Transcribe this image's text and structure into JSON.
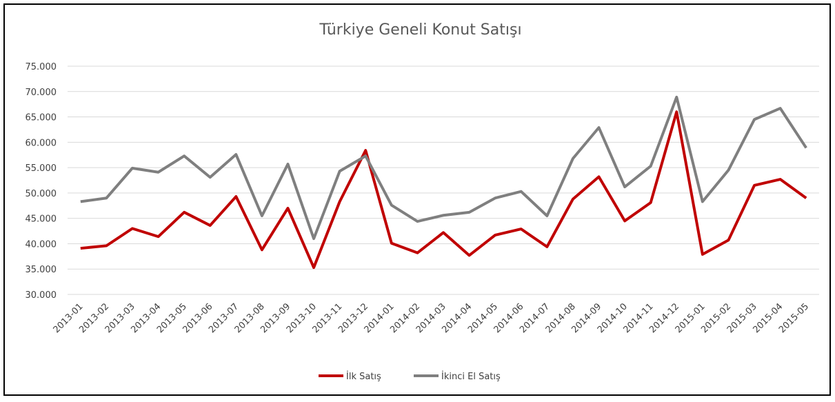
{
  "chart_data": {
    "type": "line",
    "title": "Türkiye Geneli Konut Satışı",
    "categories": [
      "2013-01",
      "2013-02",
      "2013-03",
      "2013-04",
      "2013-05",
      "2013-06",
      "2013-07",
      "2013-08",
      "2013-09",
      "2013-10",
      "2013-11",
      "2013-12",
      "2014-01",
      "2014-02",
      "2014-03",
      "2014-04",
      "2014-05",
      "2014-06",
      "2014-07",
      "2014-08",
      "2014-09",
      "2014-10",
      "2014-11",
      "2014-12",
      "2015-01",
      "2015-02",
      "2015-03",
      "2015-04",
      "2015-05"
    ],
    "series": [
      {
        "name": "İlk Satış",
        "color": "#c00000",
        "values": [
          39100,
          39600,
          43000,
          41400,
          46200,
          43600,
          49300,
          38800,
          47000,
          35300,
          48300,
          58400,
          40100,
          38200,
          42200,
          37700,
          41700,
          42900,
          39400,
          48800,
          53200,
          44500,
          48100,
          66000,
          37900,
          40700,
          51500,
          52700,
          49000
        ]
      },
      {
        "name": "İkinci El Satış",
        "color": "#7f7f7f",
        "values": [
          48300,
          49000,
          54900,
          54100,
          57300,
          53100,
          57600,
          45500,
          55700,
          41000,
          54300,
          57300,
          47600,
          44400,
          45600,
          46200,
          49000,
          50300,
          45500,
          56800,
          62900,
          51200,
          55300,
          68900,
          48300,
          54500,
          64500,
          66700,
          58900
        ]
      }
    ],
    "ylim": [
      30000,
      75000
    ],
    "yticks": [
      {
        "value": 30000,
        "label": "30.000"
      },
      {
        "value": 35000,
        "label": "35.000"
      },
      {
        "value": 40000,
        "label": "40.000"
      },
      {
        "value": 45000,
        "label": "45.000"
      },
      {
        "value": 50000,
        "label": "50.000"
      },
      {
        "value": 55000,
        "label": "55.000"
      },
      {
        "value": 60000,
        "label": "60.000"
      },
      {
        "value": 65000,
        "label": "65.000"
      },
      {
        "value": 70000,
        "label": "70.000"
      },
      {
        "value": 75000,
        "label": "75.000"
      }
    ],
    "grid": true,
    "legend": "bottom"
  }
}
